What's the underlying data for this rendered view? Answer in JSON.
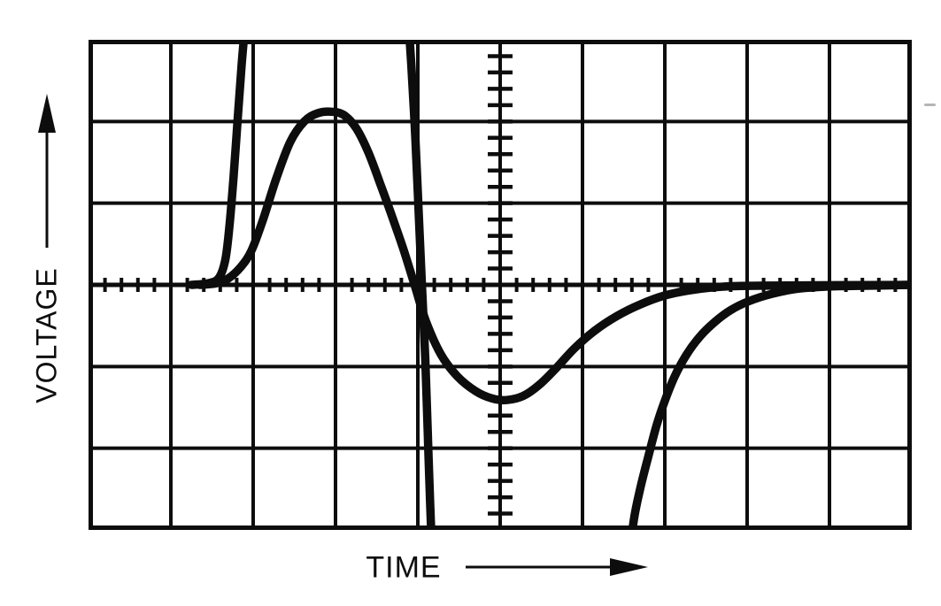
{
  "figure": {
    "background_color": "#ffffff",
    "ink_color": "#0d0d0d",
    "y_axis_label": "VOLTAGE",
    "x_axis_label": "TIME"
  },
  "chart_data": {
    "type": "line",
    "title": "",
    "xlabel": "TIME",
    "ylabel": "VOLTAGE",
    "axis_units": "oscilloscope graticule divisions (no numeric scale printed)",
    "xlim": [
      0,
      10
    ],
    "ylim": [
      -3,
      3
    ],
    "grid": {
      "grid_on": true,
      "columns": 10,
      "rows": 6,
      "zero_row_from_top": 3,
      "center_column": 5,
      "minor_ticks_per_division": 5,
      "tick_style": "ticks along center horizontal (zero) axis and center vertical axis"
    },
    "key_features": {
      "smooth_wave_peak_div": 2.12,
      "smooth_wave_peak_x_div": 2.9,
      "smooth_wave_trough_div": -1.41,
      "smooth_wave_trough_x_div": 5.1,
      "clipped_trace": "off-scale above +3 div between x 1.9-3.9 and below -3 div between x 4.2-6.6"
    },
    "series": [
      {
        "name": "clipped-pulse-trace",
        "clipped": true,
        "segments": [
          [
            [
              1.25,
              0
            ],
            [
              1.45,
              0.02
            ],
            [
              1.58,
              0.08
            ],
            [
              1.66,
              0.3
            ],
            [
              1.71,
              0.7
            ],
            [
              1.76,
              1.3
            ],
            [
              1.81,
              2.0
            ],
            [
              1.86,
              2.7
            ],
            [
              1.9,
              3.15
            ],
            [
              1.93,
              3.45
            ]
          ],
          [
            [
              3.87,
              3.45
            ],
            [
              3.92,
              2.7
            ],
            [
              3.97,
              1.8
            ],
            [
              4.01,
              0.9
            ],
            [
              4.05,
              0.0
            ],
            [
              4.09,
              -0.9
            ],
            [
              4.12,
              -1.8
            ],
            [
              4.15,
              -2.7
            ],
            [
              4.18,
              -3.45
            ]
          ],
          [
            [
              6.56,
              -3.45
            ],
            [
              6.62,
              -2.9
            ],
            [
              6.7,
              -2.5
            ],
            [
              6.8,
              -2.1
            ],
            [
              6.9,
              -1.72
            ],
            [
              7.0,
              -1.42
            ],
            [
              7.12,
              -1.12
            ],
            [
              7.26,
              -0.86
            ],
            [
              7.42,
              -0.64
            ],
            [
              7.6,
              -0.46
            ],
            [
              7.8,
              -0.31
            ],
            [
              8.02,
              -0.2
            ],
            [
              8.3,
              -0.11
            ],
            [
              8.6,
              -0.05
            ],
            [
              9.0,
              -0.02
            ],
            [
              9.5,
              -0.01
            ],
            [
              10.0,
              0.0
            ]
          ]
        ]
      },
      {
        "name": "smooth-wave-trace",
        "clipped": false,
        "segments": [
          [
            [
              1.35,
              0.0
            ],
            [
              1.55,
              0.02
            ],
            [
              1.7,
              0.08
            ],
            [
              1.85,
              0.22
            ],
            [
              1.98,
              0.42
            ],
            [
              2.12,
              0.8
            ],
            [
              2.28,
              1.3
            ],
            [
              2.45,
              1.75
            ],
            [
              2.62,
              2.0
            ],
            [
              2.78,
              2.1
            ],
            [
              2.95,
              2.12
            ],
            [
              3.1,
              2.08
            ],
            [
              3.25,
              1.92
            ],
            [
              3.4,
              1.62
            ],
            [
              3.55,
              1.22
            ],
            [
              3.7,
              0.8
            ],
            [
              3.83,
              0.42
            ],
            [
              3.96,
              0.0
            ],
            [
              4.1,
              -0.45
            ],
            [
              4.28,
              -0.85
            ],
            [
              4.48,
              -1.12
            ],
            [
              4.7,
              -1.3
            ],
            [
              4.9,
              -1.39
            ],
            [
              5.08,
              -1.41
            ],
            [
              5.28,
              -1.36
            ],
            [
              5.48,
              -1.22
            ],
            [
              5.68,
              -1.02
            ],
            [
              5.9,
              -0.78
            ],
            [
              6.15,
              -0.56
            ],
            [
              6.42,
              -0.38
            ],
            [
              6.7,
              -0.24
            ],
            [
              7.0,
              -0.13
            ],
            [
              7.35,
              -0.06
            ],
            [
              7.75,
              -0.02
            ],
            [
              8.2,
              -0.01
            ],
            [
              10.0,
              0.0
            ]
          ]
        ]
      }
    ]
  }
}
